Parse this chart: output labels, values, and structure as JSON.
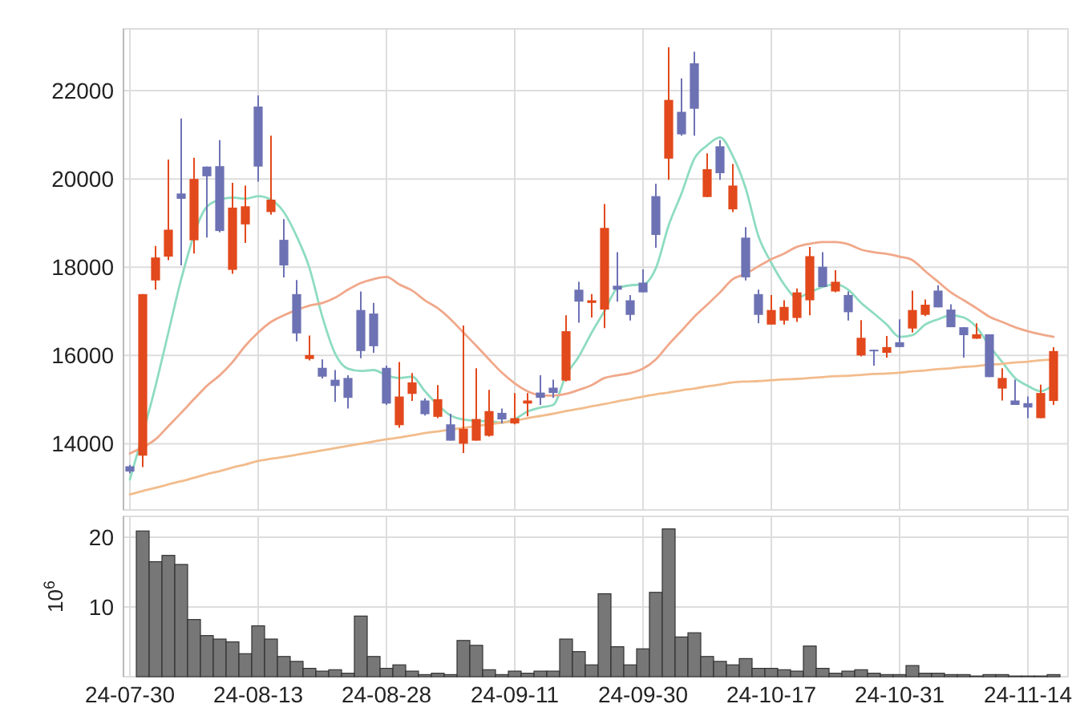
{
  "chart_data": [
    {
      "type": "candlestick",
      "categories": [
        null,
        null,
        null,
        null,
        null,
        null,
        null,
        null,
        null,
        null,
        null,
        null,
        null,
        null,
        null,
        null,
        null,
        null,
        null,
        null,
        null,
        null,
        null,
        null,
        null,
        null,
        null,
        null,
        null,
        null,
        null,
        null,
        null,
        null,
        null,
        null,
        null,
        null,
        null,
        null,
        null,
        null,
        null,
        null,
        null,
        null,
        null,
        null,
        null,
        null,
        null,
        null,
        null,
        null,
        null,
        null,
        null,
        null,
        null,
        null,
        null,
        null,
        null,
        null,
        null,
        null,
        null,
        null,
        null,
        null,
        null,
        null,
        null
      ],
      "ohlc": [
        [
          13490,
          13520,
          13330,
          13370
        ],
        [
          13730,
          17390,
          13470,
          17390
        ],
        [
          17700,
          18480,
          17490,
          18220
        ],
        [
          18240,
          20440,
          18160,
          18850
        ],
        [
          19670,
          21370,
          18040,
          19550
        ],
        [
          18610,
          20480,
          18310,
          20000
        ],
        [
          20280,
          20280,
          18670,
          20060
        ],
        [
          20290,
          20880,
          18790,
          18820
        ],
        [
          17940,
          19910,
          17850,
          19350
        ],
        [
          18970,
          19850,
          18550,
          19380
        ],
        [
          21640,
          21890,
          19940,
          20280
        ],
        [
          19250,
          20980,
          19190,
          19530
        ],
        [
          18620,
          19090,
          17770,
          18040
        ],
        [
          17390,
          17710,
          16320,
          16500
        ],
        [
          15920,
          16450,
          15890,
          16010
        ],
        [
          15720,
          15910,
          15480,
          15520
        ],
        [
          15450,
          15670,
          14950,
          15310
        ],
        [
          15490,
          15550,
          14800,
          15040
        ],
        [
          17030,
          17450,
          15940,
          16100
        ],
        [
          16950,
          17190,
          16060,
          16210
        ],
        [
          15720,
          15770,
          14880,
          14910
        ],
        [
          14420,
          15850,
          14360,
          15070
        ],
        [
          15130,
          15600,
          14970,
          15390
        ],
        [
          14980,
          15030,
          14640,
          14670
        ],
        [
          14610,
          15330,
          14580,
          15010
        ],
        [
          14440,
          14680,
          14070,
          14070
        ],
        [
          14000,
          16680,
          13790,
          14340
        ],
        [
          14070,
          15710,
          14070,
          14560
        ],
        [
          14180,
          15220,
          14160,
          14740
        ],
        [
          14700,
          14800,
          14460,
          14550
        ],
        [
          14460,
          15150,
          14440,
          14580
        ],
        [
          14910,
          15150,
          14620,
          14980
        ],
        [
          15160,
          15550,
          14880,
          15040
        ],
        [
          15270,
          15450,
          15040,
          15150
        ],
        [
          15430,
          16910,
          15410,
          16550
        ],
        [
          17490,
          17670,
          16740,
          17220
        ],
        [
          17190,
          17390,
          16860,
          17250
        ],
        [
          17040,
          19430,
          16620,
          18890
        ],
        [
          17580,
          18340,
          17220,
          17490
        ],
        [
          17250,
          17370,
          16790,
          16920
        ],
        [
          17650,
          17950,
          17430,
          17430
        ],
        [
          19610,
          19890,
          18440,
          18730
        ],
        [
          20460,
          22980,
          19980,
          21790
        ],
        [
          21520,
          22280,
          20980,
          21010
        ],
        [
          22620,
          22880,
          20980,
          21590
        ],
        [
          19590,
          20580,
          19590,
          20220
        ],
        [
          20740,
          20880,
          19980,
          20130
        ],
        [
          19310,
          20340,
          19250,
          19850
        ],
        [
          18670,
          18910,
          17700,
          17770
        ],
        [
          17390,
          17490,
          16730,
          16920
        ],
        [
          16700,
          17370,
          16700,
          17030
        ],
        [
          16790,
          17250,
          16700,
          17100
        ],
        [
          16850,
          17520,
          16760,
          17430
        ],
        [
          17250,
          18460,
          16910,
          18250
        ],
        [
          18010,
          18340,
          17550,
          17550
        ],
        [
          17450,
          17930,
          17430,
          17670
        ],
        [
          17370,
          17450,
          16790,
          16980
        ],
        [
          16000,
          16800,
          15980,
          16400
        ],
        [
          16130,
          16130,
          15770,
          16100
        ],
        [
          16060,
          16440,
          15950,
          16190
        ],
        [
          16300,
          16820,
          16190,
          16190
        ],
        [
          16610,
          17470,
          16520,
          17030
        ],
        [
          16920,
          17270,
          16890,
          17150
        ],
        [
          17470,
          17590,
          17090,
          17090
        ],
        [
          17040,
          17160,
          16640,
          16640
        ],
        [
          16640,
          16640,
          15950,
          16460
        ],
        [
          16380,
          16730,
          16380,
          16480
        ],
        [
          16480,
          16480,
          15510,
          15510
        ],
        [
          15250,
          15710,
          14980,
          15490
        ],
        [
          14980,
          15450,
          14880,
          14880
        ],
        [
          14920,
          15070,
          14580,
          14820
        ],
        [
          14580,
          15340,
          14580,
          15150
        ],
        [
          14970,
          16190,
          14880,
          16100
        ]
      ],
      "colors": [
        "#6d72b4",
        "#e2491c",
        "#e2491c",
        "#e2491c",
        "#6d72b4",
        "#e2491c",
        "#6d72b4",
        "#6d72b4",
        "#e2491c",
        "#e2491c",
        "#6d72b4",
        "#e2491c",
        "#6d72b4",
        "#6d72b4",
        "#e2491c",
        "#6d72b4",
        "#6d72b4",
        "#6d72b4",
        "#6d72b4",
        "#6d72b4",
        "#6d72b4",
        "#e2491c",
        "#e2491c",
        "#6d72b4",
        "#e2491c",
        "#6d72b4",
        "#e2491c",
        "#e2491c",
        "#e2491c",
        "#6d72b4",
        "#e2491c",
        "#e2491c",
        "#6d72b4",
        "#6d72b4",
        "#e2491c",
        "#6d72b4",
        "#e2491c",
        "#e2491c",
        "#6d72b4",
        "#6d72b4",
        "#6d72b4",
        "#6d72b4",
        "#e2491c",
        "#6d72b4",
        "#6d72b4",
        "#e2491c",
        "#6d72b4",
        "#e2491c",
        "#6d72b4",
        "#6d72b4",
        "#e2491c",
        "#e2491c",
        "#e2491c",
        "#e2491c",
        "#6d72b4",
        "#e2491c",
        "#6d72b4",
        "#e2491c",
        "#6d72b4",
        "#e2491c",
        "#6d72b4",
        "#e2491c",
        "#e2491c",
        "#6d72b4",
        "#6d72b4",
        "#6d72b4",
        "#e2491c",
        "#6d72b4",
        "#e2491c",
        "#6d72b4",
        "#6d72b4",
        "#e2491c",
        "#e2491c"
      ],
      "series": [
        {
          "type": "line",
          "color": "#8edcc0",
          "values": [
            13190,
            null,
            15310,
            16520,
            17730,
            null,
            19370,
            19530,
            19580,
            19550,
            19610,
            19530,
            19250,
            18700,
            17980,
            16880,
            16040,
            15700,
            15650,
            15670,
            15550,
            15490,
            15520,
            15190,
            14880,
            14640,
            14550,
            14520,
            14510,
            14480,
            14560,
            14730,
            14820,
            14880,
            15550,
            15980,
            16520,
            17010,
            17520,
            17590,
            17610,
            17980,
            18950,
            19670,
            20460,
            20760,
            20940,
            20520,
            19790,
            18700,
            18100,
            17610,
            17310,
            17430,
            17550,
            17610,
            17490,
            17190,
            16950,
            16700,
            16420,
            16460,
            16700,
            16820,
            16910,
            16860,
            16640,
            16220,
            15850,
            15490,
            15310,
            15190,
            15330
          ]
        },
        {
          "type": "line",
          "color": "#f0a88a",
          "values": [
            13780,
            13920,
            14100,
            14400,
            14700,
            15010,
            15310,
            15550,
            15850,
            16220,
            16520,
            16760,
            16910,
            17030,
            17130,
            17190,
            17310,
            17490,
            17640,
            17730,
            17780,
            17610,
            17470,
            17250,
            17070,
            16820,
            16520,
            16220,
            15910,
            15610,
            15370,
            15190,
            15100,
            15090,
            15130,
            15220,
            15330,
            15490,
            15550,
            15600,
            15700,
            15910,
            16250,
            16560,
            16880,
            17150,
            17430,
            17730,
            17850,
            18020,
            18180,
            18310,
            18460,
            18530,
            18570,
            18570,
            18520,
            18400,
            18340,
            18300,
            18240,
            18160,
            17910,
            17670,
            17430,
            17250,
            17070,
            16880,
            16760,
            16640,
            16550,
            16480,
            16420
          ]
        },
        {
          "type": "line",
          "color": "#f2bc8c",
          "values": [
            12850,
            12930,
            13000,
            13080,
            13150,
            13230,
            13310,
            13380,
            13460,
            13530,
            13610,
            13660,
            13700,
            13750,
            13800,
            13850,
            13900,
            13950,
            14000,
            14050,
            14100,
            14140,
            14190,
            14240,
            14280,
            14320,
            14360,
            14400,
            14440,
            14480,
            14520,
            14580,
            14630,
            14680,
            14740,
            14790,
            14850,
            14900,
            14960,
            15010,
            15070,
            15120,
            15160,
            15210,
            15250,
            15300,
            15340,
            15390,
            15410,
            15420,
            15440,
            15460,
            15470,
            15490,
            15510,
            15530,
            15540,
            15560,
            15580,
            15590,
            15610,
            15640,
            15660,
            15690,
            15710,
            15740,
            15760,
            15790,
            15810,
            15840,
            15860,
            15890,
            15910
          ]
        }
      ],
      "ylim": [
        12500,
        23400
      ],
      "yticks": [
        14000,
        16000,
        18000,
        20000,
        22000
      ],
      "grid": true,
      "tick_labels": "y"
    },
    {
      "type": "bar",
      "categories": [
        "24-07-30",
        null,
        null,
        null,
        null,
        null,
        null,
        null,
        null,
        null,
        "24-08-13",
        null,
        null,
        null,
        null,
        null,
        null,
        null,
        null,
        null,
        "24-08-28",
        null,
        null,
        null,
        null,
        null,
        null,
        null,
        null,
        null,
        "24-09-11",
        null,
        null,
        null,
        null,
        null,
        null,
        null,
        null,
        null,
        "24-09-30",
        null,
        null,
        null,
        null,
        null,
        null,
        null,
        null,
        null,
        "24-10-17",
        null,
        null,
        null,
        null,
        null,
        null,
        null,
        null,
        null,
        "24-10-31",
        null,
        null,
        null,
        null,
        null,
        null,
        null,
        null,
        null,
        "24-11-14",
        null,
        null
      ],
      "values": [
        0,
        20.9,
        16.5,
        17.4,
        16.1,
        8.2,
        5.9,
        5.4,
        5.0,
        3.3,
        7.3,
        5.4,
        2.9,
        2.2,
        1.2,
        0.8,
        1.0,
        0.5,
        8.7,
        2.9,
        1.2,
        1.7,
        0.8,
        0.3,
        0.5,
        0.3,
        5.2,
        4.5,
        1.0,
        0.3,
        0.8,
        0.5,
        0.8,
        0.8,
        5.4,
        3.6,
        1.7,
        11.9,
        4.3,
        1.7,
        4.0,
        12.1,
        21.2,
        5.7,
        6.3,
        2.9,
        2.2,
        1.7,
        2.6,
        1.2,
        1.2,
        1.0,
        0.8,
        4.4,
        1.2,
        0.5,
        0.8,
        1.0,
        0.5,
        0.3,
        0.3,
        1.6,
        0.5,
        0.5,
        0.3,
        0.3,
        0.1,
        0.3,
        0.3,
        0.1,
        0.1,
        0.1,
        0.3
      ],
      "color": "#777777",
      "ylabel": "10$^{6}$",
      "ylim": [
        0,
        23
      ],
      "yticks": [
        10,
        20
      ],
      "grid": true
    }
  ]
}
